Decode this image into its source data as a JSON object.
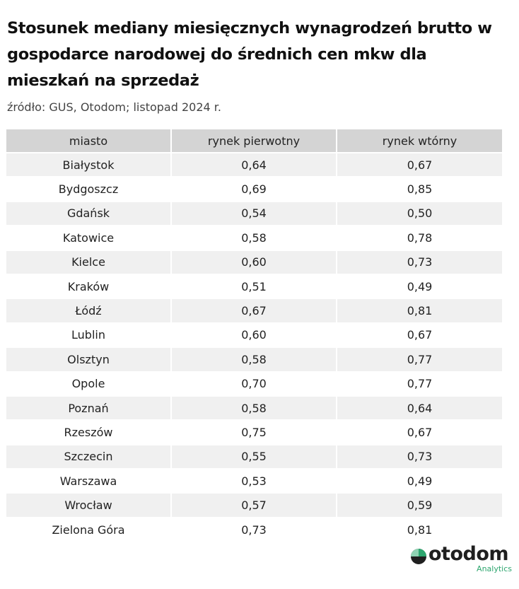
{
  "title": "Stosunek mediany miesięcznych wynagrodzeń brutto w gospodarce narodowej do średnich cen mkw dla mieszkań na sprzedaż",
  "source": "źródło: GUS, Otodom; listopad 2024 r.",
  "brand": {
    "name": "otodom",
    "sub": "Analytics",
    "accent_color": "#2ea66f",
    "dark_color": "#1f1f1f"
  },
  "chart_data": {
    "type": "table",
    "columns": [
      "miasto",
      "rynek pierwotny",
      "rynek wtórny"
    ],
    "rows": [
      [
        "Białystok",
        "0,64",
        "0,67"
      ],
      [
        "Bydgoszcz",
        "0,69",
        "0,85"
      ],
      [
        "Gdańsk",
        "0,54",
        "0,50"
      ],
      [
        "Katowice",
        "0,58",
        "0,78"
      ],
      [
        "Kielce",
        "0,60",
        "0,73"
      ],
      [
        "Kraków",
        "0,51",
        "0,49"
      ],
      [
        "Łódź",
        "0,67",
        "0,81"
      ],
      [
        "Lublin",
        "0,60",
        "0,67"
      ],
      [
        "Olsztyn",
        "0,58",
        "0,77"
      ],
      [
        "Opole",
        "0,70",
        "0,77"
      ],
      [
        "Poznań",
        "0,58",
        "0,64"
      ],
      [
        "Rzeszów",
        "0,75",
        "0,67"
      ],
      [
        "Szczecin",
        "0,55",
        "0,73"
      ],
      [
        "Warszawa",
        "0,53",
        "0,49"
      ],
      [
        "Wrocław",
        "0,57",
        "0,59"
      ],
      [
        "Zielona Góra",
        "0,73",
        "0,81"
      ]
    ]
  }
}
